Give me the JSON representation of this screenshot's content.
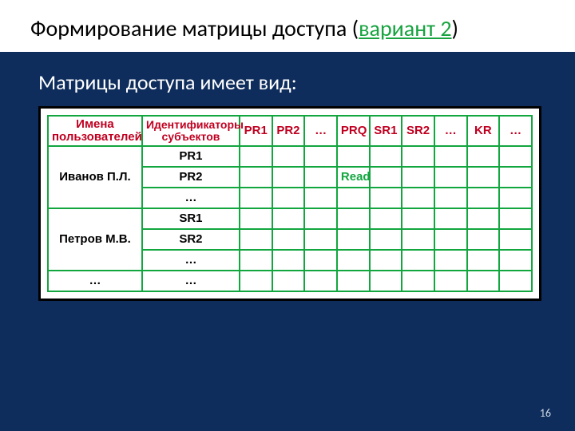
{
  "title": {
    "prefix": "Формирование матрицы доступа (",
    "accent": "вариант 2",
    "suffix": ")"
  },
  "subtitle": "Матрицы доступа имеет вид:",
  "table": {
    "header": {
      "users": "Имена пользователей",
      "subjects": "Идентификаторы субъектов",
      "cols": [
        "PR1",
        "PR2",
        "…",
        "PRQ",
        "SR1",
        "SR2",
        "…",
        "KR",
        "…"
      ]
    },
    "rows": [
      {
        "user": "Иванов П.Л.",
        "id": "PR1",
        "cell4": ""
      },
      {
        "user": "",
        "id": "PR2",
        "cell4": "Read"
      },
      {
        "user": "",
        "id": "…",
        "cell4": ""
      },
      {
        "user": "Петров М.В.",
        "id": "SR1",
        "cell4": ""
      },
      {
        "user": "",
        "id": "SR2",
        "cell4": ""
      },
      {
        "user": "",
        "id": "…",
        "cell4": ""
      },
      {
        "user": "…",
        "id": "…",
        "cell4": ""
      }
    ],
    "read_label": "Read"
  },
  "colors": {
    "slide_bg": "#0e2d5c",
    "header_text": "#c00020",
    "border": "#12a63f",
    "read": "#12a63f",
    "title_accent": "#17a340"
  },
  "page_number": "16"
}
